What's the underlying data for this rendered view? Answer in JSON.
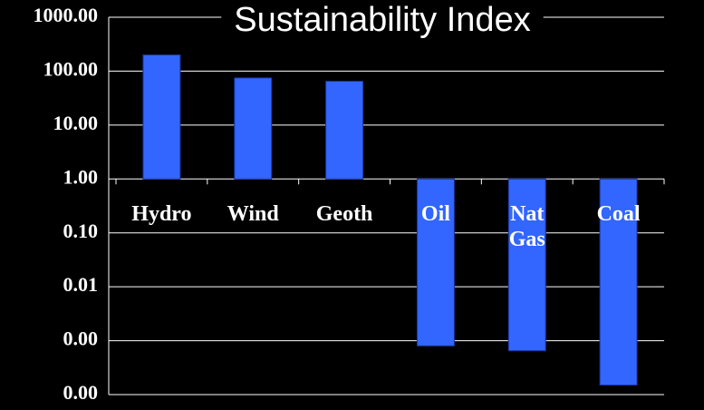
{
  "chart_data": {
    "type": "bar",
    "title": "Sustainability Index",
    "log_scale": true,
    "grid": true,
    "categories": [
      "Hydro",
      "Wind",
      "Geoth",
      "Oil",
      "Nat Gas",
      "Coal"
    ],
    "values": [
      200,
      75,
      65,
      0.0008,
      0.00065,
      0.00015
    ],
    "color": "#3366ff",
    "ylim": [
      0.0001,
      1000
    ],
    "yticks": [
      {
        "value": 1000,
        "label": "1000.00"
      },
      {
        "value": 100,
        "label": "100.00"
      },
      {
        "value": 10,
        "label": "10.00"
      },
      {
        "value": 1,
        "label": "1.00"
      },
      {
        "value": 0.1,
        "label": "0.10"
      },
      {
        "value": 0.01,
        "label": "0.01"
      },
      {
        "value": 0.001,
        "label": "0.00"
      },
      {
        "value": 0.0001,
        "label": "0.00"
      }
    ]
  }
}
